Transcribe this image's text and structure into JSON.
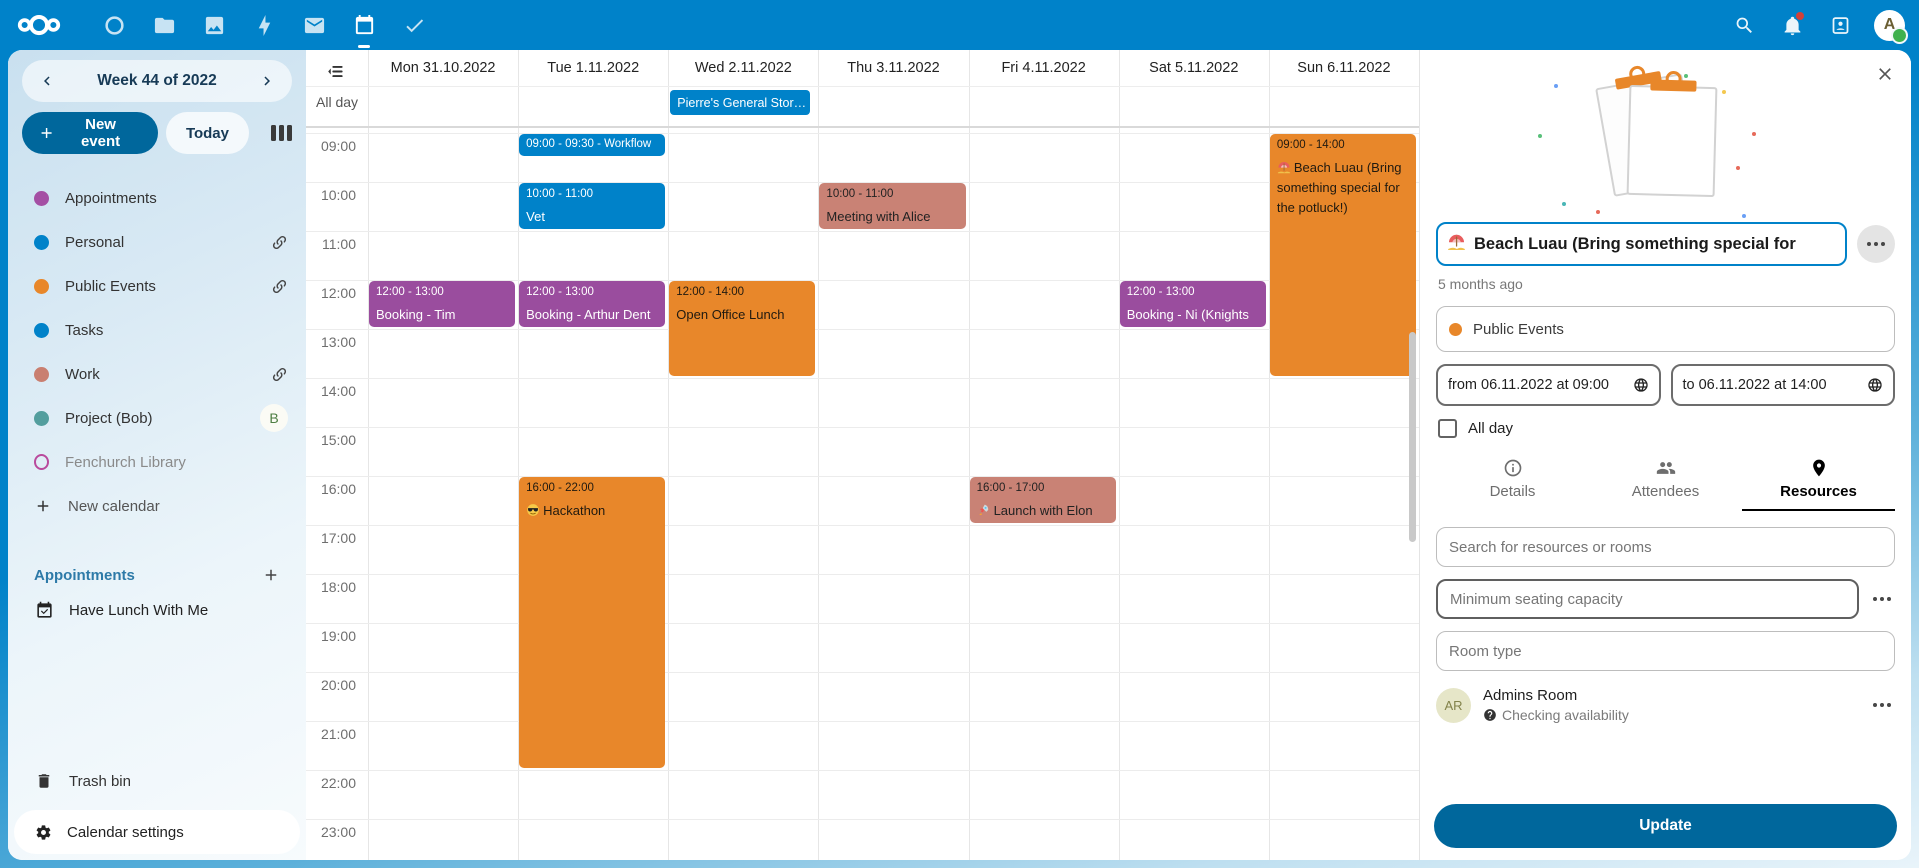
{
  "topbar": {
    "apps": [
      {
        "name": "nextcloud-logo",
        "icon": "logo",
        "active": false
      },
      {
        "name": "dashboard",
        "icon": "dashboard",
        "active": false
      },
      {
        "name": "files",
        "icon": "folder",
        "active": false
      },
      {
        "name": "photos",
        "icon": "image",
        "active": false
      },
      {
        "name": "activity",
        "icon": "lightning",
        "active": false
      },
      {
        "name": "mail",
        "icon": "mail",
        "active": false
      },
      {
        "name": "calendar",
        "icon": "calendar",
        "active": true
      },
      {
        "name": "tasks",
        "icon": "check",
        "active": false
      }
    ],
    "tools": [
      {
        "name": "search",
        "icon": "magnify",
        "badge": false
      },
      {
        "name": "notifications",
        "icon": "bell",
        "badge": true
      },
      {
        "name": "contacts",
        "icon": "contacts",
        "badge": false
      }
    ],
    "avatar_letter": "A",
    "notification_badge_color": "#e43b2c",
    "status_color": "#3fb14e"
  },
  "sidebar": {
    "week_label": "Week 44 of 2022",
    "new_event_label": "New event",
    "today_label": "Today",
    "calendars": [
      {
        "label": "Appointments",
        "color": "#a44fa4",
        "style": "dot",
        "shared": false,
        "muted": false,
        "badge": ""
      },
      {
        "label": "Personal",
        "color": "#0082c9",
        "style": "dot",
        "shared": true,
        "muted": false,
        "badge": ""
      },
      {
        "label": "Public Events",
        "color": "#e8872a",
        "style": "dot",
        "shared": true,
        "muted": false,
        "badge": ""
      },
      {
        "label": "Tasks",
        "color": "#0082c9",
        "style": "dot",
        "shared": false,
        "muted": false,
        "badge": ""
      },
      {
        "label": "Work",
        "color": "#c97f70",
        "style": "dot",
        "shared": true,
        "muted": false,
        "badge": ""
      },
      {
        "label": "Project (Bob)",
        "color": "#539e9e",
        "style": "dot",
        "shared": false,
        "muted": false,
        "badge": "B"
      },
      {
        "label": "Fenchurch Library",
        "color": "#b94a9d",
        "style": "outline",
        "shared": false,
        "muted": true,
        "badge": ""
      }
    ],
    "new_calendar_label": "New calendar",
    "appointments_header": "Appointments",
    "appointment_items": [
      "Have Lunch With Me"
    ],
    "trash_label": "Trash bin",
    "settings_label": "Calendar settings"
  },
  "calendar": {
    "all_day_label": "All day",
    "days": [
      "Mon 31.10.2022",
      "Tue 1.11.2022",
      "Wed 2.11.2022",
      "Thu 3.11.2022",
      "Fri 4.11.2022",
      "Sat 5.11.2022",
      "Sun 6.11.2022"
    ],
    "times": [
      "09:00",
      "10:00",
      "11:00",
      "12:00",
      "13:00",
      "14:00",
      "15:00",
      "16:00",
      "17:00",
      "18:00",
      "19:00",
      "20:00",
      "21:00",
      "22:00",
      "23:00"
    ],
    "palette": {
      "blue": {
        "bg": "#0082c9",
        "fg": "#ffffff"
      },
      "purple": {
        "bg": "#9a4d9e",
        "fg": "#ffffff"
      },
      "orange": {
        "bg": "#e8872a",
        "fg": "#201a10"
      },
      "salmon": {
        "bg": "#c98275",
        "fg": "#222222"
      }
    },
    "allday_events": [
      {
        "day": 2,
        "title": "Pierre's General Stor…",
        "color": "blue"
      }
    ],
    "events": [
      {
        "day": 0,
        "start": 12,
        "end": 13,
        "time_label": "12:00 - 13:00",
        "title": "Booking - Tim (Wizard)",
        "color": "purple",
        "compact": false,
        "icon": ""
      },
      {
        "day": 1,
        "start": 9,
        "end": 9.5,
        "time_label": "09:00 - 09:30",
        "title": "Workflow",
        "color": "blue",
        "compact": true,
        "icon": ""
      },
      {
        "day": 1,
        "start": 10,
        "end": 11,
        "time_label": "10:00 - 11:00",
        "title": "Vet",
        "color": "blue",
        "compact": false,
        "icon": ""
      },
      {
        "day": 1,
        "start": 12,
        "end": 13,
        "time_label": "12:00 - 13:00",
        "title": "Booking - Arthur Dent",
        "color": "purple",
        "compact": false,
        "icon": ""
      },
      {
        "day": 1,
        "start": 16,
        "end": 22,
        "time_label": "16:00 - 22:00",
        "title": "Hackathon",
        "color": "orange",
        "compact": false,
        "icon": "sunglasses"
      },
      {
        "day": 2,
        "start": 12,
        "end": 14,
        "time_label": "12:00 - 14:00",
        "title": "Open Office Lunch",
        "color": "orange",
        "compact": false,
        "icon": ""
      },
      {
        "day": 3,
        "start": 10,
        "end": 11,
        "time_label": "10:00 - 11:00",
        "title": "Meeting with Alice",
        "color": "salmon",
        "compact": false,
        "icon": ""
      },
      {
        "day": 4,
        "start": 16,
        "end": 17,
        "time_label": "16:00 - 17:00",
        "title": "Launch with Elon",
        "color": "salmon",
        "compact": false,
        "icon": "rocket"
      },
      {
        "day": 5,
        "start": 12,
        "end": 13,
        "time_label": "12:00 - 13:00",
        "title": "Booking - Ni (Knights",
        "color": "purple",
        "compact": false,
        "icon": ""
      },
      {
        "day": 6,
        "start": 9,
        "end": 14,
        "time_label": "09:00 - 14:00",
        "title": "Beach Luau (Bring something special for the potluck!)",
        "color": "orange",
        "compact": false,
        "icon": "beach"
      }
    ]
  },
  "panel": {
    "title_value": "Beach Luau (Bring something special for",
    "title_icon": "beach",
    "title_border_color": "#0082c9",
    "last_edited": "5 months ago",
    "category_label": "Public Events",
    "category_color": "#e8872a",
    "from_label": "from 06.11.2022 at 09:00",
    "to_label": "to 06.11.2022 at 14:00",
    "all_day_label": "All day",
    "tabs": [
      {
        "label": "Details",
        "icon": "info",
        "active": false
      },
      {
        "label": "Attendees",
        "icon": "people",
        "active": false
      },
      {
        "label": "Resources",
        "icon": "pin",
        "active": true
      }
    ],
    "search_placeholder": "Search for resources or rooms",
    "seating_placeholder": "Minimum seating capacity",
    "room_type_placeholder": "Room type",
    "resources": [
      {
        "initials": "AR",
        "name": "Admins Room",
        "status": "Checking availability"
      }
    ],
    "update_label": "Update"
  }
}
